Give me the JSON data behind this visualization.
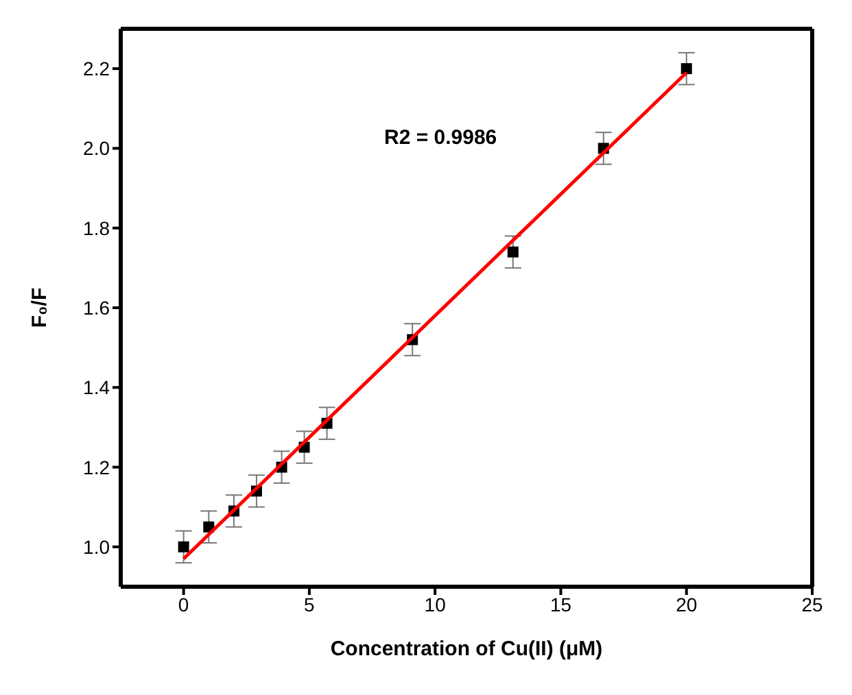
{
  "chart_data": {
    "type": "scatter",
    "xlabel": "Concentration of Cu(II) (μM)",
    "ylabel": "F₀/F",
    "x": [
      0,
      1,
      2,
      2.9,
      3.9,
      4.8,
      5.7,
      9.1,
      13.1,
      16.7,
      20
    ],
    "series": [
      {
        "color": "#000000",
        "marker": "square",
        "values": [
          1.0,
          1.05,
          1.09,
          1.14,
          1.2,
          1.25,
          1.31,
          1.52,
          1.74,
          2.0,
          2.2
        ],
        "errors": [
          0.04,
          0.04,
          0.04,
          0.04,
          0.04,
          0.04,
          0.04,
          0.04,
          0.04,
          0.04,
          0.04
        ]
      },
      {
        "type": "line",
        "color": "#ff0000",
        "marker": "none",
        "x": [
          0,
          20
        ],
        "values": [
          0.97,
          2.19
        ]
      }
    ],
    "annotations": [
      "R2 = 0.9986"
    ],
    "xlim": [
      -2.5,
      25
    ],
    "xticks": [
      0,
      5,
      10,
      15,
      20,
      25
    ],
    "ylim": [
      0.9,
      2.3
    ],
    "yticks": [
      {
        "value": 1,
        "label": "1.0"
      },
      {
        "value": 1.2,
        "label": "1.2"
      },
      {
        "value": 1.4,
        "label": "1.4"
      },
      {
        "value": 1.6,
        "label": "1.6"
      },
      {
        "value": 1.8,
        "label": "1.8"
      },
      {
        "value": 2,
        "label": "2.0"
      },
      {
        "value": 2.2,
        "label": "2.2"
      }
    ],
    "grid": false,
    "legend": false
  }
}
